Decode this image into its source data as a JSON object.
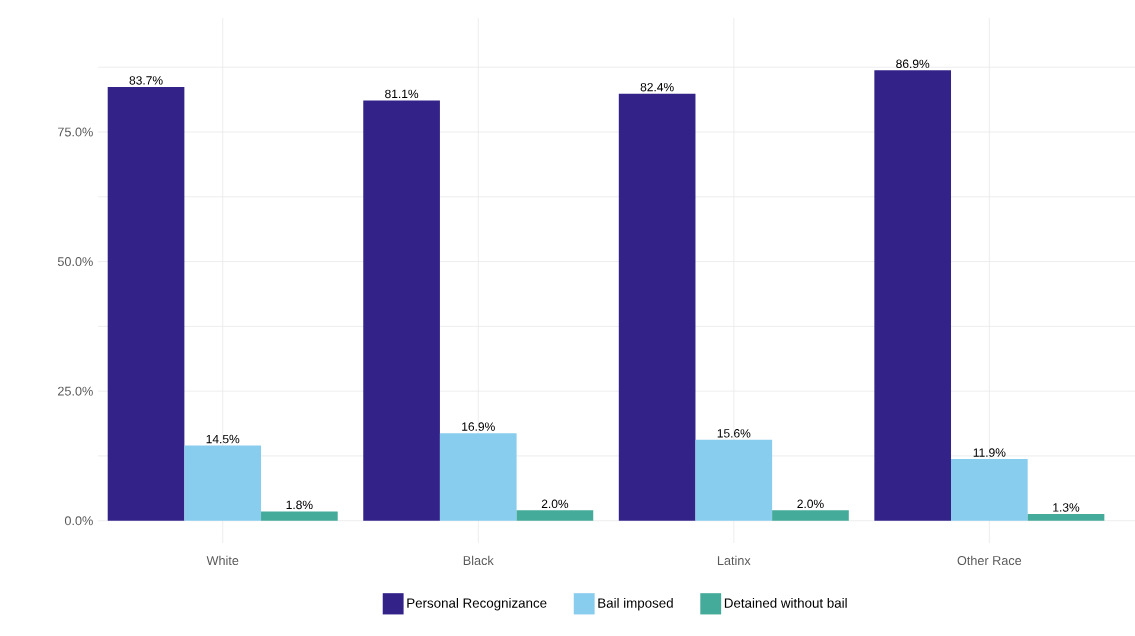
{
  "chart_data": {
    "type": "bar",
    "categories": [
      "White",
      "Black",
      "Latinx",
      "Other Race"
    ],
    "series": [
      {
        "name": "Personal Recognizance",
        "color": "#332288",
        "values": [
          83.7,
          81.1,
          82.4,
          86.9
        ],
        "value_labels": [
          "83.7%",
          "81.1%",
          "82.4%",
          "86.9%"
        ]
      },
      {
        "name": "Bail imposed",
        "color": "#88ccee",
        "values": [
          14.5,
          16.9,
          15.6,
          11.9
        ],
        "value_labels": [
          "14.5%",
          "16.9%",
          "15.6%",
          "11.9%"
        ]
      },
      {
        "name": "Detained without bail",
        "color": "#44aa99",
        "values": [
          1.8,
          2.0,
          2.0,
          1.3
        ],
        "value_labels": [
          "1.8%",
          "2.0%",
          "2.0%",
          "1.3%"
        ]
      }
    ],
    "ylim": [
      -4.3,
      97
    ],
    "yticks": [
      {
        "value": 0,
        "label": "0.0%"
      },
      {
        "value": 12.5,
        "label": null
      },
      {
        "value": 25,
        "label": "25.0%"
      },
      {
        "value": 37.5,
        "label": null
      },
      {
        "value": 50,
        "label": "50.0%"
      },
      {
        "value": 62.5,
        "label": null
      },
      {
        "value": 75,
        "label": "75.0%"
      },
      {
        "value": 87.5,
        "label": null
      }
    ],
    "grid": true,
    "legend": "bottom"
  }
}
